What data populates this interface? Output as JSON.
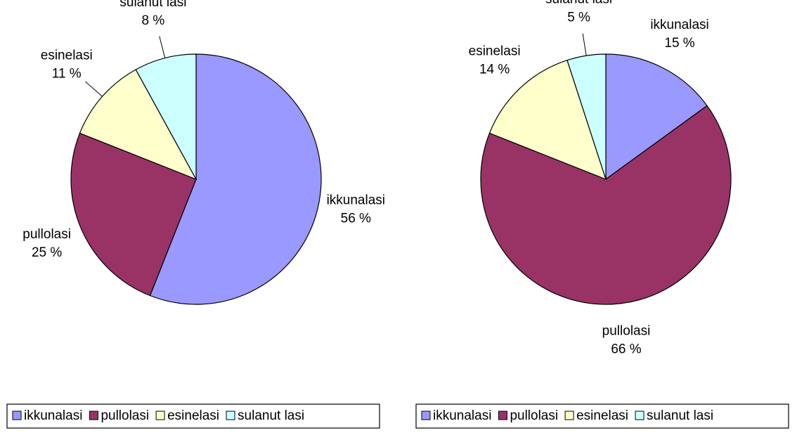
{
  "chart_data": [
    {
      "type": "pie",
      "categories": [
        "ikkunalasi",
        "pullolasi",
        "esinelasi",
        "sulanut lasi"
      ],
      "values": [
        56,
        25,
        11,
        8
      ],
      "value_labels": [
        "56 %",
        "25 %",
        "11 %",
        "8 %"
      ],
      "colors": [
        "#9999ff",
        "#993366",
        "#ffffcc",
        "#ccffff"
      ]
    },
    {
      "type": "pie",
      "categories": [
        "ikkunalasi",
        "pullolasi",
        "esinelasi",
        "sulanut lasi"
      ],
      "values": [
        15,
        66,
        14,
        5
      ],
      "value_labels": [
        "15 %",
        "66 %",
        "14 %",
        "5 %"
      ],
      "colors": [
        "#9999ff",
        "#993366",
        "#ffffcc",
        "#ccffff"
      ]
    }
  ]
}
